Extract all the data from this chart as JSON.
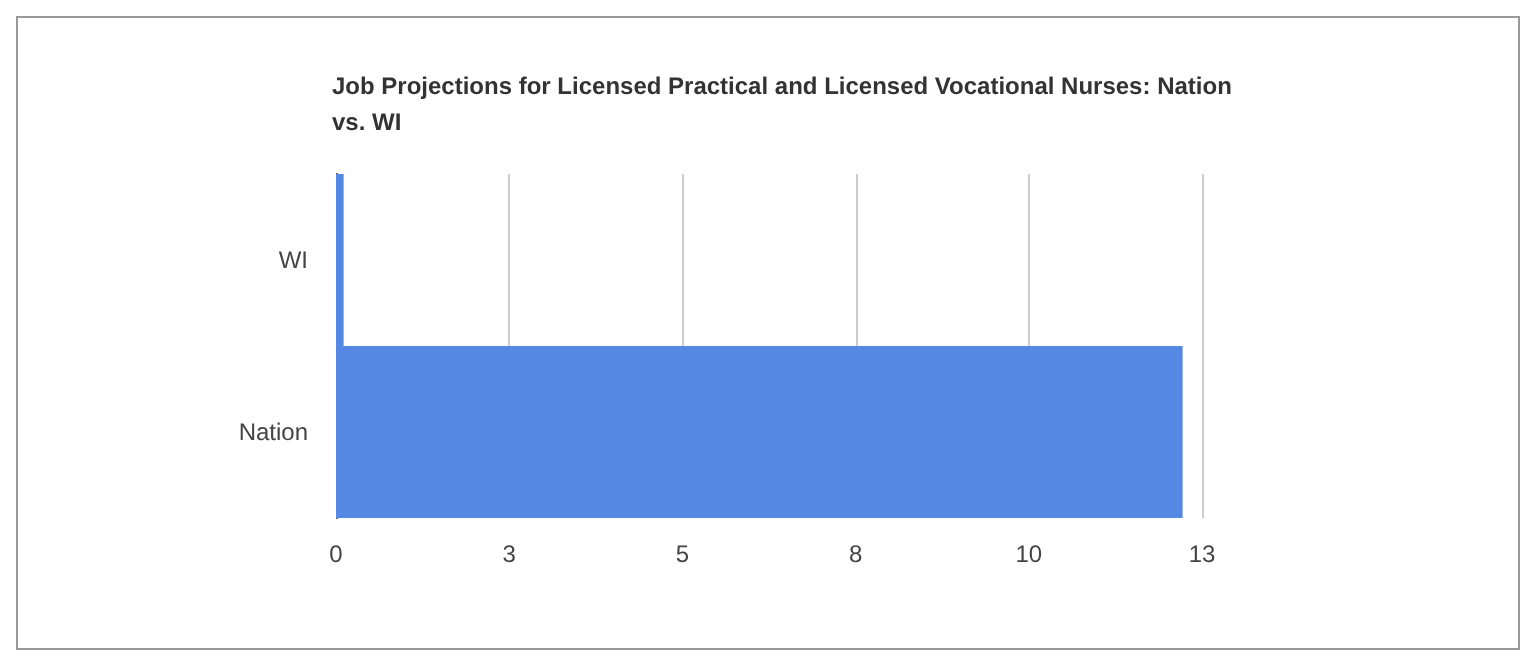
{
  "chart_data": {
    "type": "bar",
    "orientation": "horizontal",
    "title": "Job Projections for Licensed Practical and Licensed Vocational Nurses: Nation vs. WI",
    "categories": [
      "WI",
      "Nation"
    ],
    "values": [
      0.11,
      12.22
    ],
    "color": "#5488e3",
    "xlim": [
      0,
      12.5
    ],
    "xticks": [
      0,
      {
        "value": 2.5,
        "label": "3"
      },
      5,
      {
        "value": 7.5,
        "label": "8"
      },
      10,
      {
        "value": 12.5,
        "label": "13"
      }
    ],
    "grid": "x"
  }
}
